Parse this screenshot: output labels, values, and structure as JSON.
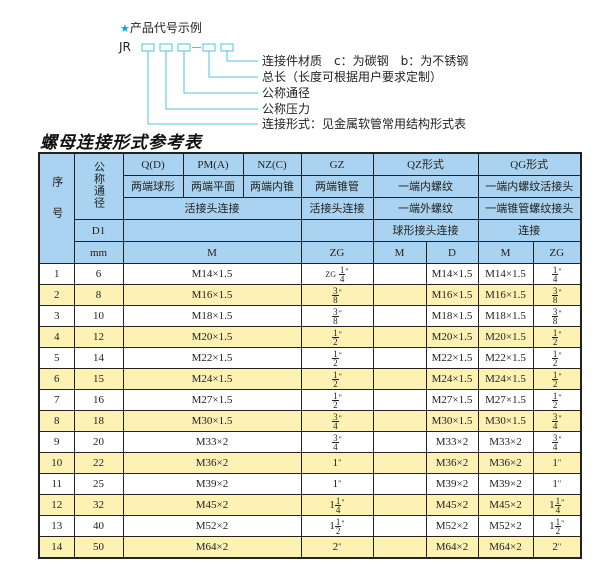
{
  "example": {
    "title": "产品代号示例",
    "code_prefix": "JR",
    "labels": [
      "连接件材质　c：为碳钢　b：为不锈钢",
      "总长（长度可根据用户要求定制）",
      "公称通径",
      "公称压力",
      "连接形式：见金属软管常用结构形式表"
    ]
  },
  "table_title": "螺母连接形式参考表",
  "header": {
    "seq": "序号",
    "dn": "公称通径",
    "d1": "D1",
    "mm": "mm",
    "q": "Q(D)",
    "pm": "PM(A)",
    "nz": "NZ(C)",
    "gz": "GZ",
    "qz": "QZ形式",
    "qg": "QG形式",
    "q_desc": "两端球形",
    "pm_desc": "两端平面",
    "nz_desc": "两端内锥",
    "gz_desc": "两端锥管",
    "qz_desc1": "一端内螺纹",
    "qg_desc1": "一端内螺纹活接头",
    "union": "活接头连接",
    "gz_union": "活接头连接",
    "qz_desc2": "一端外螺纹",
    "qg_desc2": "一端锥管螺纹接头",
    "qz_desc3": "球形接头连接",
    "qg_desc3": "连接",
    "m": "M",
    "zg": "ZG",
    "qz_m": "M",
    "qz_d": "D",
    "qg_m": "M",
    "qg_zg": "ZG"
  },
  "rows": [
    {
      "n": "1",
      "dn": "6",
      "m": "M14×1.5",
      "zg": {
        "pre": "ZG",
        "whole": "",
        "num": "1",
        "den": "4"
      },
      "d": "M14×1.5",
      "qm": "M14×1.5",
      "qzg": {
        "whole": "",
        "num": "1",
        "den": "4"
      }
    },
    {
      "n": "2",
      "dn": "8",
      "m": "M16×1.5",
      "zg": {
        "whole": "",
        "num": "3",
        "den": "8"
      },
      "d": "M16×1.5",
      "qm": "M16×1.5",
      "qzg": {
        "whole": "",
        "num": "3",
        "den": "8"
      }
    },
    {
      "n": "3",
      "dn": "10",
      "m": "M18×1.5",
      "zg": {
        "whole": "",
        "num": "3",
        "den": "8"
      },
      "d": "M18×1.5",
      "qm": "M18×1.5",
      "qzg": {
        "whole": "",
        "num": "3",
        "den": "8"
      }
    },
    {
      "n": "4",
      "dn": "12",
      "m": "M20×1.5",
      "zg": {
        "whole": "",
        "num": "1",
        "den": "2"
      },
      "d": "M20×1.5",
      "qm": "M20×1.5",
      "qzg": {
        "whole": "",
        "num": "1",
        "den": "2"
      }
    },
    {
      "n": "5",
      "dn": "14",
      "m": "M22×1.5",
      "zg": {
        "whole": "",
        "num": "1",
        "den": "2"
      },
      "d": "M22×1.5",
      "qm": "M22×1.5",
      "qzg": {
        "whole": "",
        "num": "1",
        "den": "2"
      }
    },
    {
      "n": "6",
      "dn": "15",
      "m": "M24×1.5",
      "zg": {
        "whole": "",
        "num": "1",
        "den": "2"
      },
      "d": "M24×1.5",
      "qm": "M24×1.5",
      "qzg": {
        "whole": "",
        "num": "1",
        "den": "2"
      }
    },
    {
      "n": "7",
      "dn": "16",
      "m": "M27×1.5",
      "zg": {
        "whole": "",
        "num": "1",
        "den": "2"
      },
      "d": "M27×1.5",
      "qm": "M27×1.5",
      "qzg": {
        "whole": "",
        "num": "1",
        "den": "2"
      }
    },
    {
      "n": "8",
      "dn": "18",
      "m": "M30×1.5",
      "zg": {
        "whole": "",
        "num": "3",
        "den": "4"
      },
      "d": "M30×1.5",
      "qm": "M30×1.5",
      "qzg": {
        "whole": "",
        "num": "3",
        "den": "4"
      }
    },
    {
      "n": "9",
      "dn": "20",
      "m": "M33×2",
      "zg": {
        "whole": "",
        "num": "3",
        "den": "4"
      },
      "d": "M33×2",
      "qm": "M33×2",
      "qzg": {
        "whole": "",
        "num": "3",
        "den": "4"
      }
    },
    {
      "n": "10",
      "dn": "22",
      "m": "M36×2",
      "zg": {
        "whole": "1"
      },
      "d": "M36×2",
      "qm": "M36×2",
      "qzg": {
        "whole": "1"
      }
    },
    {
      "n": "11",
      "dn": "25",
      "m": "M39×2",
      "zg": {
        "whole": "1"
      },
      "d": "M39×2",
      "qm": "M39×2",
      "qzg": {
        "whole": "1"
      }
    },
    {
      "n": "12",
      "dn": "32",
      "m": "M45×2",
      "zg": {
        "whole": "1",
        "num": "1",
        "den": "4"
      },
      "d": "M45×2",
      "qm": "M45×2",
      "qzg": {
        "whole": "1",
        "num": "1",
        "den": "4"
      }
    },
    {
      "n": "13",
      "dn": "40",
      "m": "M52×2",
      "zg": {
        "whole": "1",
        "num": "1",
        "den": "2"
      },
      "d": "M52×2",
      "qm": "M52×2",
      "qzg": {
        "whole": "1",
        "num": "1",
        "den": "2"
      }
    },
    {
      "n": "14",
      "dn": "50",
      "m": "M64×2",
      "zg": {
        "whole": "2"
      },
      "d": "M64×2",
      "qm": "M64×2",
      "qzg": {
        "whole": "2"
      }
    }
  ],
  "colors": {
    "header_bg": "#a9d3f0",
    "stripe": "#fdf2b3",
    "accent": "#1aa0d8"
  }
}
